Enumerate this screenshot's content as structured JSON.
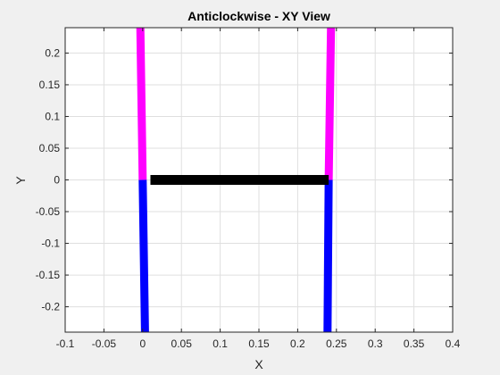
{
  "chart_data": {
    "type": "line",
    "title": "Anticlockwise - XY View",
    "xlabel": "X",
    "ylabel": "Y",
    "xlim": [
      -0.1,
      0.4
    ],
    "ylim": [
      -0.24,
      0.24
    ],
    "grid": true,
    "xticks": [
      -0.1,
      -0.05,
      0,
      0.05,
      0.1,
      0.15,
      0.2,
      0.25,
      0.3,
      0.35,
      0.4
    ],
    "xtick_labels": [
      "-0.1",
      "-0.05",
      "0",
      "0.05",
      "0.1",
      "0.15",
      "0.2",
      "0.25",
      "0.3",
      "0.35",
      "0.4"
    ],
    "yticks": [
      0.2,
      0.15,
      0.1,
      0.05,
      0,
      -0.05,
      -0.1,
      -0.15,
      -0.2
    ],
    "ytick_labels": [
      "0.2",
      "0.15",
      "0.1",
      "0.05",
      "0",
      "-0.05",
      "-0.1",
      "-0.15",
      "-0.2"
    ],
    "series": [
      {
        "color": "#ff00ff",
        "width": 9,
        "x": [
          0,
          -0.001,
          -0.002,
          -0.003
        ],
        "y": [
          0,
          0.08,
          0.16,
          0.24
        ]
      },
      {
        "color": "#ff00ff",
        "width": 9,
        "x": [
          0.24,
          0.241,
          0.242,
          0.243
        ],
        "y": [
          0,
          0.08,
          0.16,
          0.24
        ]
      },
      {
        "color": "#0000ff",
        "width": 9,
        "x": [
          0,
          0.001,
          0.002,
          0.003
        ],
        "y": [
          0,
          -0.08,
          -0.16,
          -0.24
        ]
      },
      {
        "color": "#0000ff",
        "width": 9,
        "x": [
          0.24,
          0.2395,
          0.239,
          0.2385
        ],
        "y": [
          0,
          -0.08,
          -0.16,
          -0.24
        ]
      },
      {
        "color": "#000000",
        "width": 11,
        "x": [
          0.01,
          0.24
        ],
        "y": [
          0,
          0
        ]
      }
    ]
  }
}
